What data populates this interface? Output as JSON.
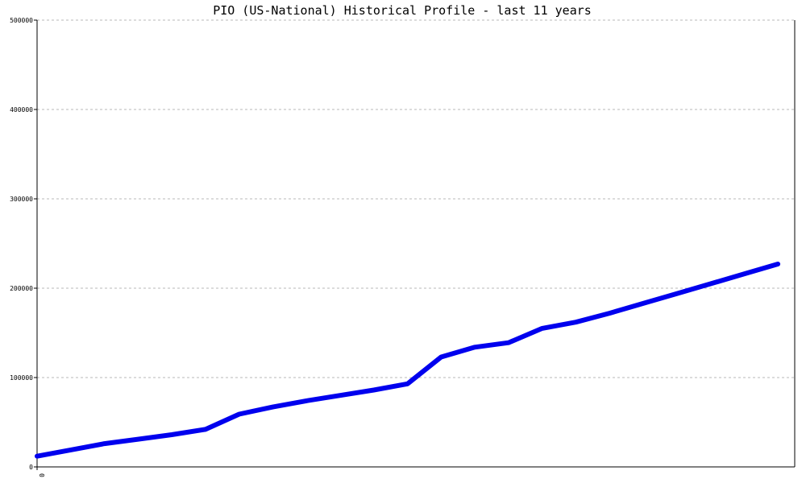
{
  "chart_data": {
    "type": "line",
    "title": "PIO (US-National) Historical Profile - last 11 years",
    "xlabel": "",
    "ylabel": "",
    "ylim": [
      0,
      500000
    ],
    "yticks": [
      0,
      100000,
      200000,
      300000,
      400000,
      500000
    ],
    "ytick_labels": [
      "0",
      "100000",
      "200000",
      "300000",
      "400000",
      "500000"
    ],
    "xtick_labels": [
      "0"
    ],
    "grid": true,
    "series_color": "#0000ee",
    "series": [
      {
        "x": [
          0,
          1,
          2,
          3,
          4,
          5,
          6,
          7,
          8,
          9,
          10,
          11,
          12,
          13,
          14,
          15,
          16,
          17,
          18,
          19,
          20,
          21,
          22
        ],
        "values": [
          12000,
          19000,
          26000,
          31000,
          36000,
          42000,
          59000,
          67000,
          74000,
          80000,
          86000,
          93000,
          123000,
          134000,
          139000,
          155000,
          162000,
          172000,
          183000,
          194000,
          205000,
          216000,
          227000
        ]
      }
    ],
    "xlim": [
      0,
      22.5
    ]
  }
}
